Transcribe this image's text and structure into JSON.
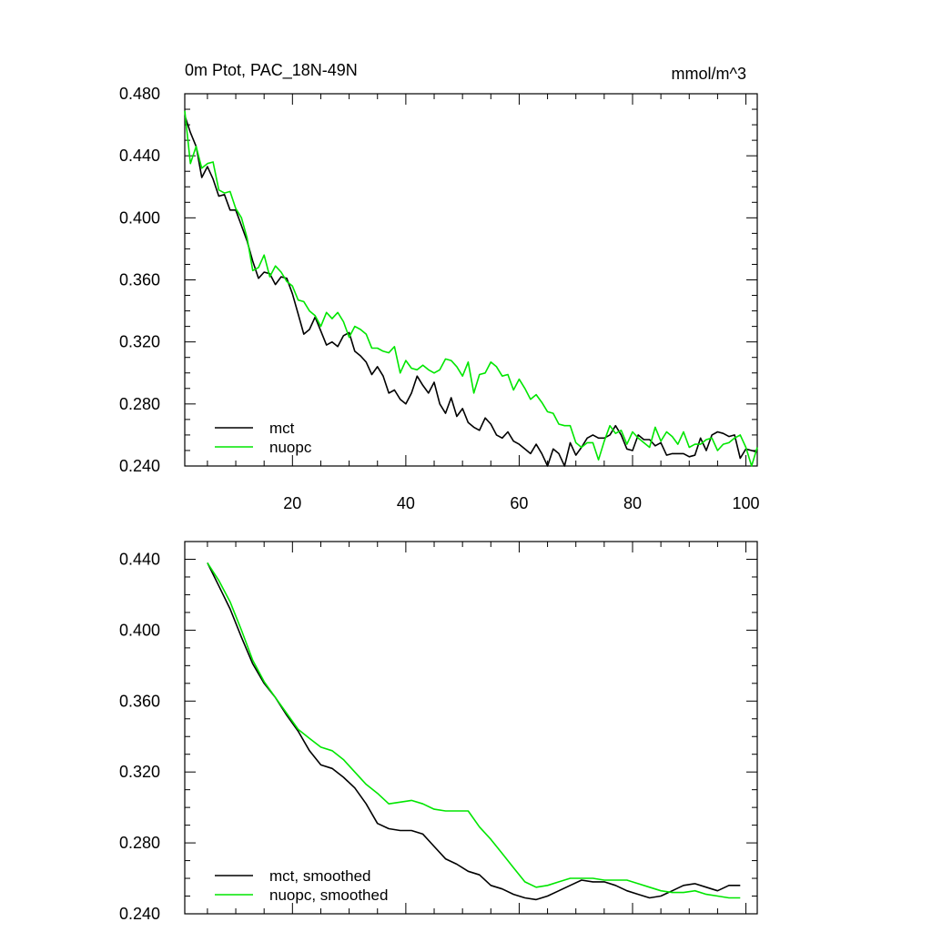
{
  "colors": {
    "mct": "#000000",
    "nuopc": "#00e600",
    "frame": "#000000",
    "background": "#ffffff"
  },
  "chart_data": [
    {
      "type": "line",
      "title": "0m Ptot, PAC_18N-49N",
      "units": "mmol/m^3",
      "xlim": [
        1,
        102
      ],
      "ylim": [
        0.24,
        0.48
      ],
      "xticks": [
        20,
        40,
        60,
        80,
        100
      ],
      "xtick_labels": [
        "20",
        "40",
        "60",
        "80",
        "100"
      ],
      "yticks": [
        0.24,
        0.28,
        0.32,
        0.36,
        0.4,
        0.44,
        0.48
      ],
      "ytick_labels": [
        "0.240",
        "0.280",
        "0.320",
        "0.360",
        "0.400",
        "0.440",
        "0.480"
      ],
      "legend_position": "bottom-left",
      "x": [
        1,
        2,
        3,
        4,
        5,
        6,
        7,
        8,
        9,
        10,
        11,
        12,
        13,
        14,
        15,
        16,
        17,
        18,
        19,
        20,
        21,
        22,
        23,
        24,
        25,
        26,
        27,
        28,
        29,
        30,
        31,
        32,
        33,
        34,
        35,
        36,
        37,
        38,
        39,
        40,
        41,
        42,
        43,
        44,
        45,
        46,
        47,
        48,
        49,
        50,
        51,
        52,
        53,
        54,
        55,
        56,
        57,
        58,
        59,
        60,
        61,
        62,
        63,
        64,
        65,
        66,
        67,
        68,
        69,
        70,
        71,
        72,
        73,
        74,
        75,
        76,
        77,
        78,
        79,
        80,
        81,
        82,
        83,
        84,
        85,
        86,
        87,
        88,
        89,
        90,
        91,
        92,
        93,
        94,
        95,
        96,
        97,
        98,
        99,
        100,
        101,
        102
      ],
      "series": [
        {
          "name": "mct",
          "color_key": "mct",
          "values": [
            0.466,
            0.455,
            0.446,
            0.426,
            0.433,
            0.425,
            0.414,
            0.415,
            0.405,
            0.405,
            0.395,
            0.385,
            0.372,
            0.361,
            0.365,
            0.364,
            0.357,
            0.362,
            0.361,
            0.351,
            0.338,
            0.325,
            0.328,
            0.336,
            0.327,
            0.318,
            0.32,
            0.317,
            0.324,
            0.326,
            0.314,
            0.311,
            0.307,
            0.299,
            0.304,
            0.298,
            0.287,
            0.289,
            0.283,
            0.28,
            0.287,
            0.298,
            0.292,
            0.287,
            0.294,
            0.28,
            0.274,
            0.284,
            0.272,
            0.277,
            0.268,
            0.265,
            0.263,
            0.271,
            0.267,
            0.26,
            0.258,
            0.262,
            0.256,
            0.254,
            0.251,
            0.248,
            0.254,
            0.248,
            0.24,
            0.251,
            0.248,
            0.24,
            0.255,
            0.247,
            0.252,
            0.258,
            0.26,
            0.258,
            0.258,
            0.26,
            0.266,
            0.26,
            0.251,
            0.25,
            0.26,
            0.257,
            0.257,
            0.253,
            0.255,
            0.247,
            0.248,
            0.248,
            0.248,
            0.246,
            0.247,
            0.258,
            0.25,
            0.26,
            0.262,
            0.261,
            0.259,
            0.26,
            0.245,
            0.251,
            0.25,
            0.249
          ]
        },
        {
          "name": "nuopc",
          "color_key": "nuopc",
          "values": [
            0.469,
            0.435,
            0.446,
            0.432,
            0.435,
            0.436,
            0.418,
            0.416,
            0.417,
            0.406,
            0.4,
            0.387,
            0.366,
            0.368,
            0.376,
            0.362,
            0.369,
            0.365,
            0.359,
            0.356,
            0.347,
            0.346,
            0.34,
            0.337,
            0.33,
            0.339,
            0.335,
            0.339,
            0.333,
            0.323,
            0.33,
            0.328,
            0.325,
            0.316,
            0.316,
            0.314,
            0.313,
            0.317,
            0.3,
            0.308,
            0.303,
            0.302,
            0.305,
            0.302,
            0.3,
            0.302,
            0.309,
            0.308,
            0.304,
            0.298,
            0.307,
            0.287,
            0.299,
            0.3,
            0.307,
            0.304,
            0.298,
            0.299,
            0.289,
            0.296,
            0.29,
            0.283,
            0.286,
            0.281,
            0.275,
            0.274,
            0.267,
            0.266,
            0.266,
            0.255,
            0.252,
            0.255,
            0.255,
            0.244,
            0.256,
            0.266,
            0.261,
            0.263,
            0.254,
            0.262,
            0.258,
            0.255,
            0.252,
            0.265,
            0.256,
            0.262,
            0.259,
            0.254,
            0.262,
            0.252,
            0.254,
            0.254,
            0.257,
            0.258,
            0.25,
            0.254,
            0.255,
            0.258,
            0.26,
            0.252,
            0.24,
            0.252
          ]
        }
      ],
      "legend": [
        {
          "label": "mct",
          "color_key": "mct"
        },
        {
          "label": "nuopc",
          "color_key": "nuopc"
        }
      ]
    },
    {
      "type": "line",
      "title": "",
      "xlim": [
        1,
        102
      ],
      "ylim": [
        0.24,
        0.45
      ],
      "xticks": [
        20,
        40,
        60,
        80,
        100
      ],
      "yticks": [
        0.24,
        0.28,
        0.32,
        0.36,
        0.4,
        0.44
      ],
      "ytick_labels": [
        "0.240",
        "0.280",
        "0.320",
        "0.360",
        "0.400",
        "0.440"
      ],
      "legend_position": "bottom-left",
      "x": [
        5,
        7,
        9,
        11,
        13,
        15,
        17,
        19,
        21,
        23,
        25,
        27,
        29,
        31,
        33,
        35,
        37,
        39,
        41,
        43,
        45,
        47,
        49,
        51,
        53,
        55,
        57,
        59,
        61,
        63,
        65,
        67,
        69,
        71,
        73,
        75,
        77,
        79,
        81,
        83,
        85,
        87,
        89,
        91,
        93,
        95,
        97,
        99
      ],
      "series": [
        {
          "name": "mct, smoothed",
          "color_key": "mct",
          "values": [
            0.438,
            0.425,
            0.412,
            0.396,
            0.381,
            0.37,
            0.362,
            0.352,
            0.343,
            0.332,
            0.324,
            0.322,
            0.317,
            0.311,
            0.302,
            0.291,
            0.288,
            0.287,
            0.287,
            0.285,
            0.278,
            0.271,
            0.268,
            0.264,
            0.262,
            0.256,
            0.254,
            0.251,
            0.249,
            0.248,
            0.25,
            0.253,
            0.256,
            0.259,
            0.258,
            0.258,
            0.256,
            0.253,
            0.251,
            0.249,
            0.25,
            0.253,
            0.256,
            0.257,
            0.255,
            0.253,
            0.256,
            0.256
          ]
        },
        {
          "name": "nuopc, smoothed",
          "color_key": "nuopc",
          "values": [
            0.438,
            0.428,
            0.416,
            0.4,
            0.383,
            0.371,
            0.362,
            0.353,
            0.344,
            0.339,
            0.334,
            0.332,
            0.327,
            0.32,
            0.313,
            0.308,
            0.302,
            0.303,
            0.304,
            0.302,
            0.299,
            0.298,
            0.298,
            0.298,
            0.289,
            0.282,
            0.274,
            0.266,
            0.258,
            0.255,
            0.256,
            0.258,
            0.26,
            0.26,
            0.26,
            0.259,
            0.259,
            0.259,
            0.257,
            0.255,
            0.253,
            0.252,
            0.252,
            0.253,
            0.251,
            0.25,
            0.249,
            0.249
          ]
        }
      ],
      "legend": [
        {
          "label": "mct, smoothed",
          "color_key": "mct"
        },
        {
          "label": "nuopc, smoothed",
          "color_key": "nuopc"
        }
      ]
    }
  ]
}
